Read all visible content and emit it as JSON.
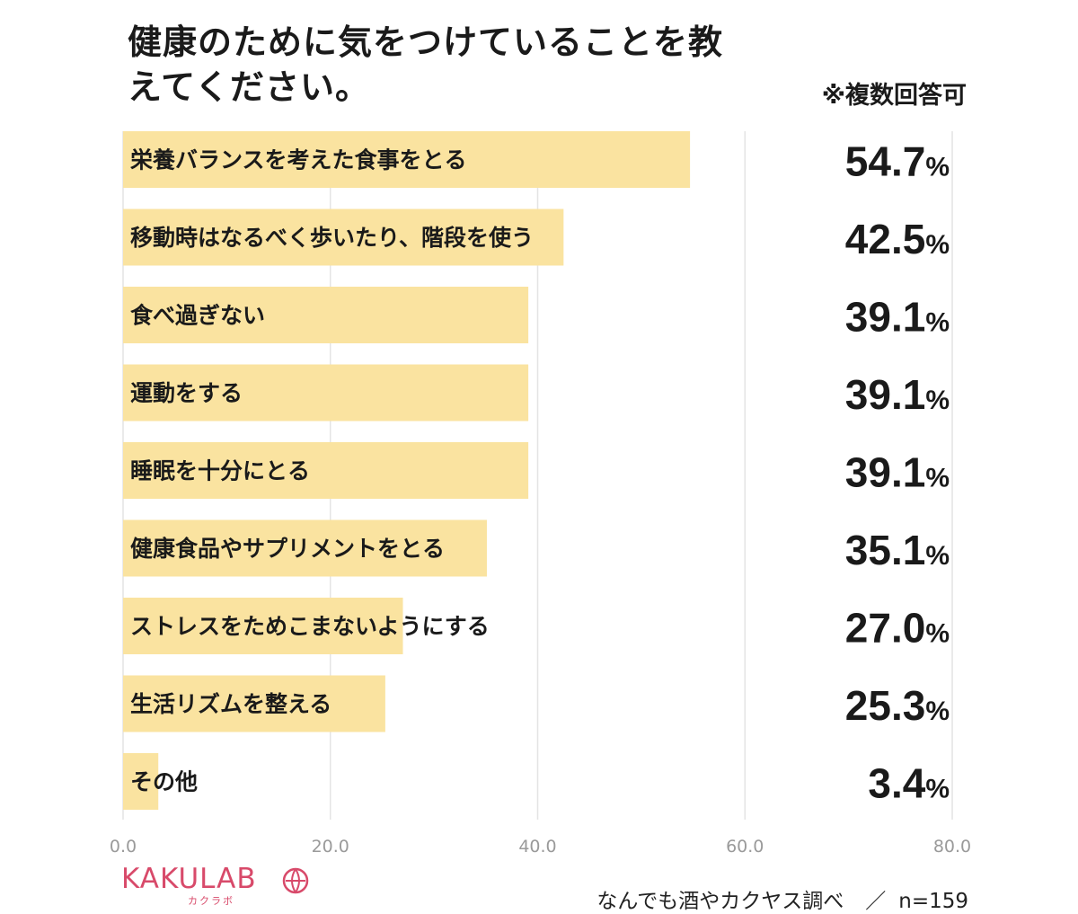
{
  "title": "健康のために気をつけていることを教えてください。",
  "note": "※複数回答可",
  "brand": {
    "name": "KAKULAB",
    "sub": "カクラボ",
    "color": "#d84a6a",
    "icon": "globe-icon"
  },
  "footer": {
    "source": "なんでも酒やカクヤス調べ",
    "separator": "／",
    "sample": "n=159"
  },
  "chart_data": {
    "type": "bar",
    "orientation": "horizontal",
    "categories": [
      "栄養バランスを考えた食事をとる",
      "移動時はなるべく歩いたり、階段を使う",
      "食べ過ぎない",
      "運動をする",
      "睡眠を十分にとる",
      "健康食品やサプリメントをとる",
      "ストレスをためこまないようにする",
      "生活リズムを整える",
      "その他"
    ],
    "values": [
      54.7,
      42.5,
      39.1,
      39.1,
      39.1,
      35.1,
      27.0,
      25.3,
      3.4
    ],
    "value_labels": [
      "54.7",
      "42.5",
      "39.1",
      "39.1",
      "39.1",
      "35.1",
      "27.0",
      "25.3",
      "3.4"
    ],
    "value_unit": "%",
    "xlim": [
      0,
      80
    ],
    "xticks": [
      "0.0",
      "20.0",
      "40.0",
      "60.0",
      "80.0"
    ],
    "grid": true,
    "bar_color": "#fae3a0"
  }
}
